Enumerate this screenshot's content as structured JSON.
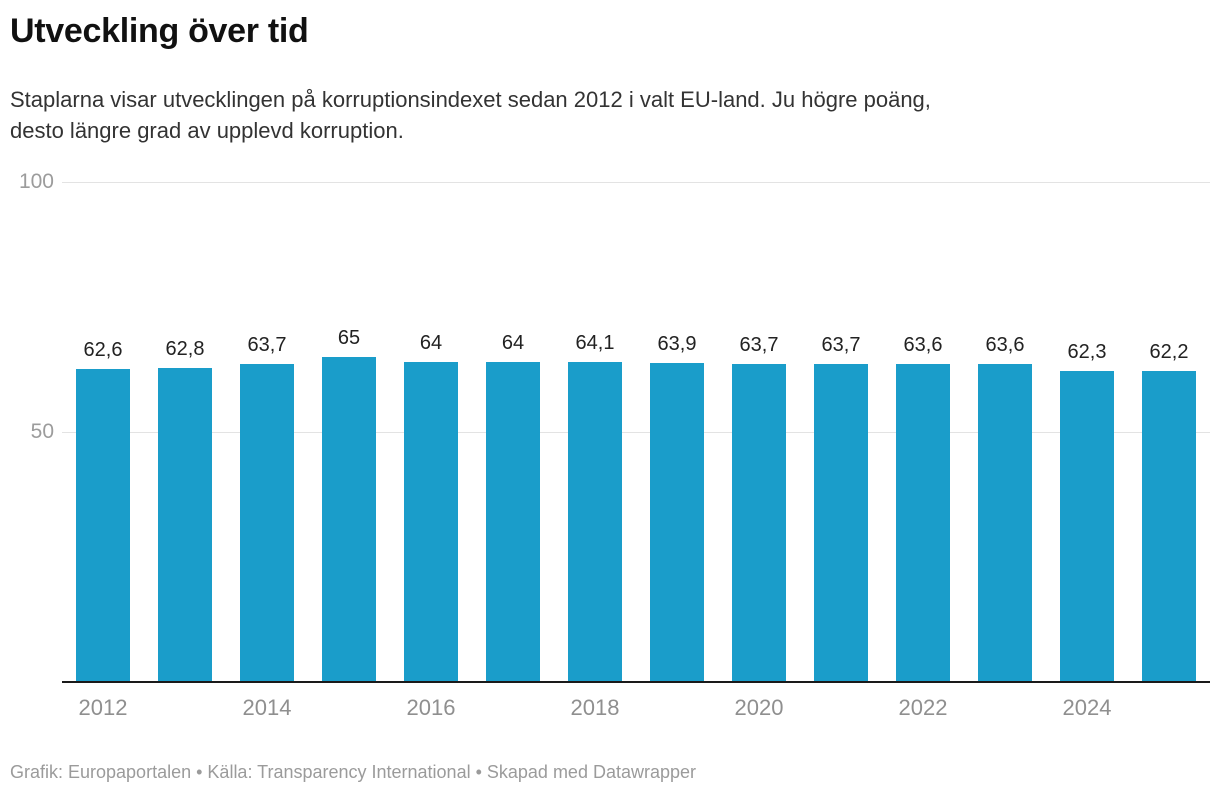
{
  "header": {
    "title": "Utveckling över tid",
    "description": "Staplarna visar utvecklingen på korruptionsindexet sedan 2012 i valt EU-land. Ju högre poäng,\ndesto längre grad av upplevd korruption."
  },
  "chart_data": {
    "type": "bar",
    "categories": [
      2012,
      2013,
      2014,
      2015,
      2016,
      2017,
      2018,
      2019,
      2020,
      2021,
      2022,
      2023,
      2024,
      2025
    ],
    "values": [
      62.6,
      62.8,
      63.7,
      65,
      64,
      64,
      64.1,
      63.9,
      63.7,
      63.7,
      63.6,
      63.6,
      62.3,
      62.2
    ],
    "value_labels": [
      "62,6",
      "62,8",
      "63,7",
      "65",
      "64",
      "64",
      "64,1",
      "63,9",
      "63,7",
      "63,7",
      "63,6",
      "63,6",
      "62,3",
      "62,2"
    ],
    "x_tick_labels": [
      "2012",
      "2014",
      "2016",
      "2018",
      "2020",
      "2022",
      "2024"
    ],
    "y_ticks": [
      100,
      50
    ],
    "ylim": [
      0,
      100
    ],
    "bar_color": "#1a9dca",
    "grid": "horizontal gridlines at 50 and 100, black baseline axis",
    "legend_position": "none"
  },
  "footer": {
    "parts": [
      {
        "label": "Grafik: Europaportalen"
      },
      {
        "label": "Källa: Transparency International"
      },
      {
        "label": "Skapad med Datawrapper"
      }
    ],
    "separator": " • "
  }
}
